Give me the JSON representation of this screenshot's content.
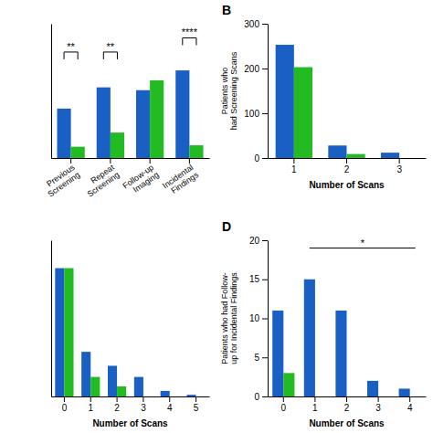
{
  "chart_data": [
    {
      "type": "bar",
      "categories": [
        "Previous\nScreening",
        "Repeat\nScreening",
        "Follow-up\nImaging",
        "Incidental\nFindings"
      ],
      "series": [
        {
          "color": "#1a5fc4",
          "values": [
            3.5,
            5.0,
            4.8,
            6.2
          ]
        },
        {
          "color": "#22bb22",
          "values": [
            0.8,
            1.8,
            5.5,
            0.9
          ]
        }
      ],
      "ylim": [
        0,
        9.5
      ],
      "tick_labels": "x",
      "annotations": [
        {
          "text": "**",
          "category": "Previous\nScreening",
          "y": 7.5
        },
        {
          "text": "**",
          "category": "Repeat\nScreening",
          "y": 7.5
        },
        {
          "text": "****",
          "category": "Incidental\nFindings",
          "y": 8.5
        }
      ]
    },
    {
      "type": "bar",
      "title": "B",
      "categories": [
        "1",
        "2",
        "3"
      ],
      "series": [
        {
          "color": "#1a5fc4",
          "values": [
            253,
            28,
            12
          ]
        },
        {
          "color": "#22bb22",
          "values": [
            203,
            9,
            0
          ]
        }
      ],
      "x_label": "Number of Scans",
      "y_label": "Patients who\nhad Screening Scans",
      "ylim": [
        0,
        300
      ],
      "yticks": [
        0,
        100,
        200,
        300
      ]
    },
    {
      "type": "bar",
      "categories": [
        "0",
        "1",
        "2",
        "3",
        "4",
        "5"
      ],
      "series": [
        {
          "color": "#1a5fc4",
          "values": [
            230,
            80,
            55,
            35,
            10,
            3
          ]
        },
        {
          "color": "#22bb22",
          "values": [
            230,
            35,
            18,
            0,
            0,
            0
          ]
        }
      ],
      "x_label": "Number of Scans",
      "ylim": [
        0,
        280
      ],
      "tick_labels": "x"
    },
    {
      "type": "bar",
      "title": "D",
      "categories": [
        "0",
        "1",
        "2",
        "3",
        "4"
      ],
      "series": [
        {
          "color": "#1a5fc4",
          "values": [
            11,
            15,
            11,
            2,
            1
          ]
        },
        {
          "color": "#22bb22",
          "values": [
            3,
            0,
            0,
            0,
            0
          ]
        }
      ],
      "x_label": "Number of Scans",
      "y_label": "Patients who had Follow-\nup for Incidental Findings",
      "ylim": [
        0,
        20
      ],
      "yticks": [
        0,
        5,
        10,
        15,
        20
      ],
      "annotations": [
        {
          "text": "*",
          "from": "1",
          "to": "4",
          "y": 19
        }
      ]
    }
  ]
}
